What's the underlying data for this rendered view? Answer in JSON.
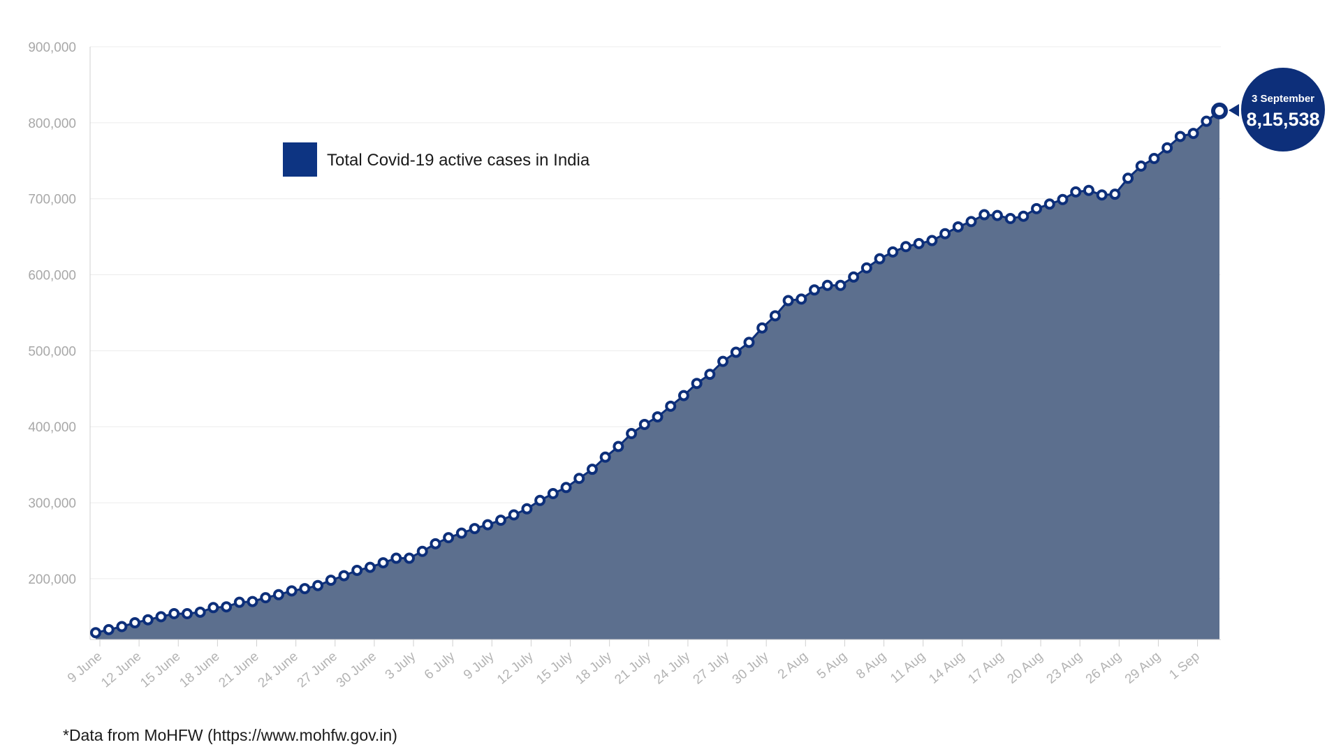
{
  "chart_data": {
    "type": "area",
    "title": "",
    "xlabel": "",
    "ylabel": "",
    "ylim": [
      120000,
      900000
    ],
    "yticks": [
      200000,
      300000,
      400000,
      500000,
      600000,
      700000,
      800000,
      900000
    ],
    "ytick_labels": [
      "200,000",
      "300,000",
      "400,000",
      "500,000",
      "600,000",
      "700,000",
      "800,000",
      "900,000"
    ],
    "grid": true,
    "legend_position": "top-left",
    "x_start": "9 June",
    "x_end": "3 September",
    "xtick_labels": [
      "9 June",
      "12 June",
      "15 June",
      "18 June",
      "21 June",
      "24 June",
      "27 June",
      "30 June",
      "3 July",
      "6 July",
      "9 July",
      "12 July",
      "15 July",
      "18 July",
      "21 July",
      "24 July",
      "27 July",
      "30 July",
      "2 Aug",
      "5 Aug",
      "8 Aug",
      "11 Aug",
      "14 Aug",
      "17 Aug",
      "20 Aug",
      "23 Aug",
      "26 Aug",
      "29 Aug",
      "1 Sep"
    ],
    "series": [
      {
        "name": "Total Covid-19 active cases in India",
        "color": "#0d2f7a",
        "fill": "#5c6f8e",
        "values": [
          129000,
          133000,
          137000,
          142000,
          146000,
          150000,
          154000,
          154000,
          156000,
          162000,
          163000,
          169000,
          170000,
          175000,
          179000,
          184000,
          187000,
          191000,
          198000,
          204000,
          211000,
          215000,
          221000,
          227000,
          227000,
          236000,
          246000,
          254000,
          260000,
          266000,
          271000,
          277000,
          284000,
          292000,
          303000,
          312000,
          320000,
          332000,
          344000,
          360000,
          374000,
          391000,
          403000,
          413000,
          427000,
          441000,
          457000,
          469000,
          486000,
          498000,
          511000,
          530000,
          546000,
          566000,
          568000,
          580000,
          586000,
          586000,
          597000,
          609000,
          621000,
          630000,
          637000,
          641000,
          645000,
          654000,
          663000,
          670000,
          679000,
          678000,
          674000,
          677000,
          687000,
          693000,
          699000,
          709000,
          711000,
          705000,
          706000,
          727000,
          743000,
          753000,
          767000,
          782000,
          786000,
          802000,
          815538
        ]
      }
    ],
    "callout": {
      "date": "3 September",
      "value": "8,15,538"
    }
  },
  "footnote": "*Data from MoHFW (https://www.mohfw.gov.in)"
}
